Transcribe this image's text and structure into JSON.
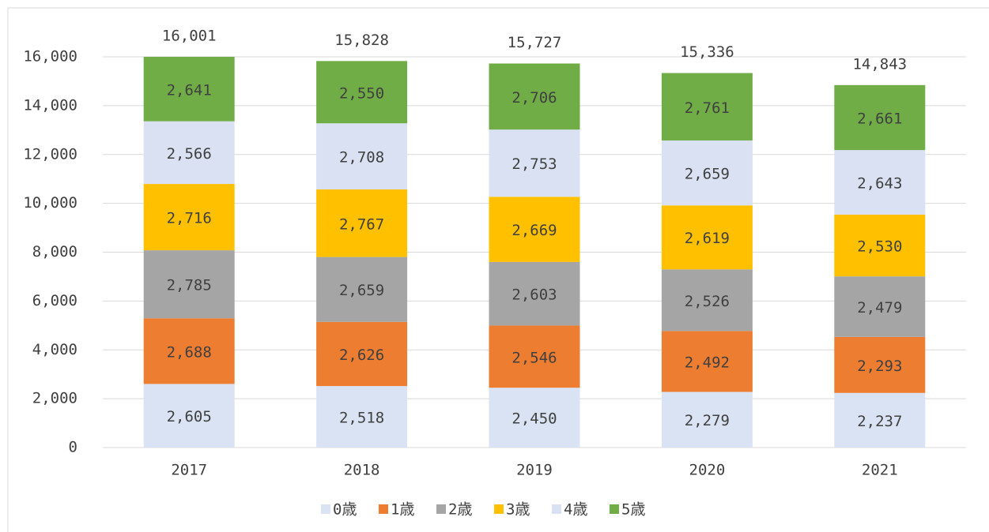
{
  "chart_data": {
    "type": "stacked_bar",
    "categories": [
      "2017",
      "2018",
      "2019",
      "2020",
      "2021"
    ],
    "series": [
      {
        "name": "0歳",
        "color": "#dae3f3",
        "values": [
          2605,
          2518,
          2450,
          2279,
          2237
        ],
        "value_labels": [
          "2,605",
          "2,518",
          "2,450",
          "2,279",
          "2,237"
        ]
      },
      {
        "name": "1歳",
        "color": "#ed7d31",
        "values": [
          2688,
          2626,
          2546,
          2492,
          2293
        ],
        "value_labels": [
          "2,688",
          "2,626",
          "2,546",
          "2,492",
          "2,293"
        ]
      },
      {
        "name": "2歳",
        "color": "#a5a5a5",
        "values": [
          2785,
          2659,
          2603,
          2526,
          2479
        ],
        "value_labels": [
          "2,785",
          "2,659",
          "2,603",
          "2,526",
          "2,479"
        ]
      },
      {
        "name": "3歳",
        "color": "#ffc000",
        "values": [
          2716,
          2767,
          2669,
          2619,
          2530
        ],
        "value_labels": [
          "2,716",
          "2,767",
          "2,669",
          "2,619",
          "2,530"
        ]
      },
      {
        "name": "4歳",
        "color": "#d9e1f2",
        "values": [
          2566,
          2708,
          2753,
          2659,
          2643
        ],
        "value_labels": [
          "2,566",
          "2,708",
          "2,753",
          "2,659",
          "2,643"
        ]
      },
      {
        "name": "5歳",
        "color": "#70ad47",
        "values": [
          2641,
          2550,
          2706,
          2761,
          2661
        ],
        "value_labels": [
          "2,641",
          "2,550",
          "2,706",
          "2,761",
          "2,661"
        ]
      }
    ],
    "totals": [
      16001,
      15828,
      15727,
      15336,
      14843
    ],
    "total_labels": [
      "16,001",
      "15,828",
      "15,727",
      "15,336",
      "14,843"
    ],
    "ylim": [
      0,
      16000
    ],
    "yticks": [
      0,
      {
        "value": 2000,
        "label": "2,000"
      },
      {
        "value": 4000,
        "label": "4,000"
      },
      {
        "value": 6000,
        "label": "6,000"
      },
      {
        "value": 8000,
        "label": "8,000"
      },
      {
        "value": 10000,
        "label": "10,000"
      },
      {
        "value": 12000,
        "label": "12,000"
      },
      {
        "value": 14000,
        "label": "14,000"
      },
      {
        "value": 16000,
        "label": "16,000"
      }
    ],
    "grid": true,
    "legend": "bottom"
  }
}
